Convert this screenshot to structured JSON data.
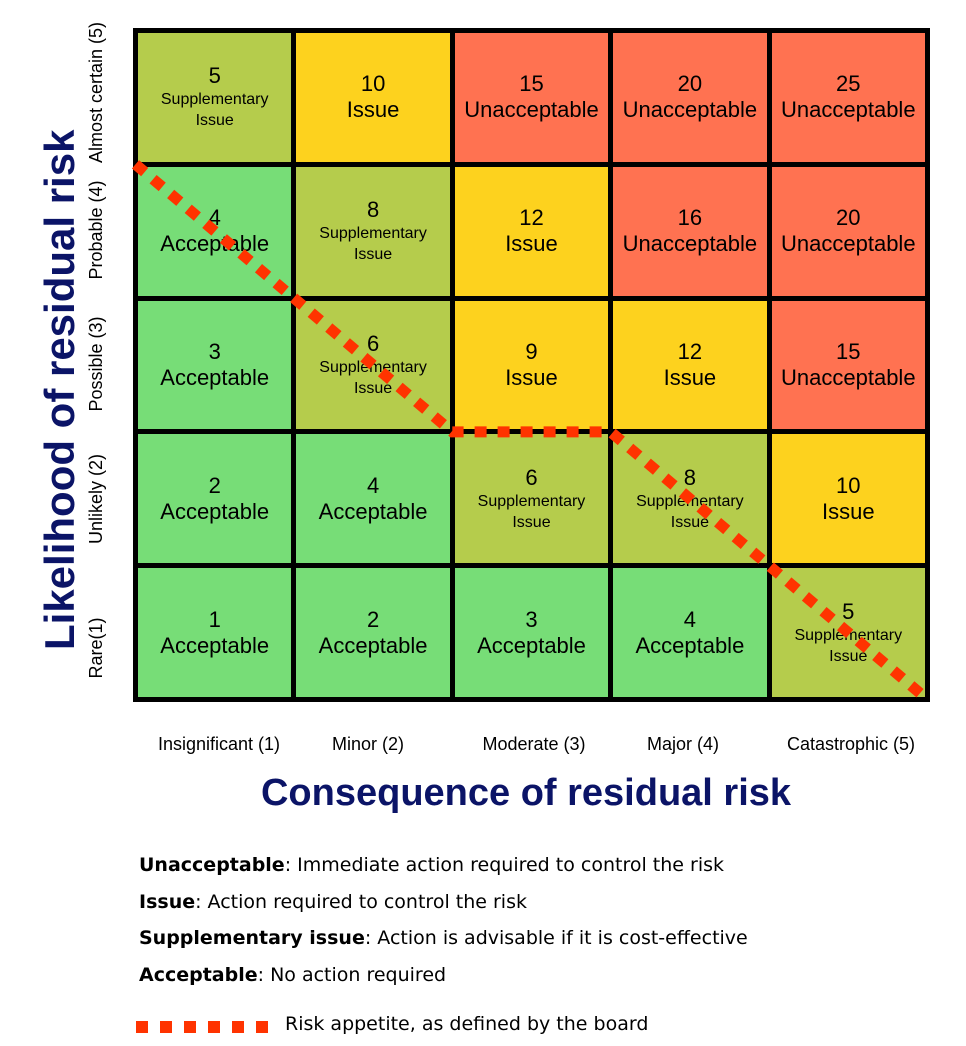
{
  "y_axis_title": "Likelihood of residual risk",
  "x_axis_title": "Consequence of residual risk",
  "rows": [
    "Almost certain (5)",
    "Probable (4)",
    "Possible (3)",
    "Unlikely (2)",
    "Rare(1)"
  ],
  "columns": [
    "Insignificant (1)",
    "Minor (2)",
    "Moderate (3)",
    "Major (4)",
    "Catastrophic (5)"
  ],
  "colors": {
    "Acceptable": "#77dd77",
    "Supplementary": "#b5cc4c",
    "Issue": "#fdd21e",
    "Unacceptable": "#ff7251",
    "appetite_line": "#ff3300",
    "title_color": "#0b1467"
  },
  "matrix": [
    [
      {
        "score": "5",
        "line1": "Supplementary",
        "line2": "Issue",
        "category": "Supplementary"
      },
      {
        "score": "10",
        "line1": "Issue",
        "line2": "",
        "category": "Issue"
      },
      {
        "score": "15",
        "line1": "Unacceptable",
        "line2": "",
        "category": "Unacceptable"
      },
      {
        "score": "20",
        "line1": "Unacceptable",
        "line2": "",
        "category": "Unacceptable"
      },
      {
        "score": "25",
        "line1": "Unacceptable",
        "line2": "",
        "category": "Unacceptable"
      }
    ],
    [
      {
        "score": "4",
        "line1": "Acceptable",
        "line2": "",
        "category": "Acceptable"
      },
      {
        "score": "8",
        "line1": "Supplementary",
        "line2": "Issue",
        "category": "Supplementary"
      },
      {
        "score": "12",
        "line1": "Issue",
        "line2": "",
        "category": "Issue"
      },
      {
        "score": "16",
        "line1": "Unacceptable",
        "line2": "",
        "category": "Unacceptable"
      },
      {
        "score": "20",
        "line1": "Unacceptable",
        "line2": "",
        "category": "Unacceptable"
      }
    ],
    [
      {
        "score": "3",
        "line1": "Acceptable",
        "line2": "",
        "category": "Acceptable"
      },
      {
        "score": "6",
        "line1": "Supplementary",
        "line2": "Issue",
        "category": "Supplementary"
      },
      {
        "score": "9",
        "line1": "Issue",
        "line2": "",
        "category": "Issue"
      },
      {
        "score": "12",
        "line1": "Issue",
        "line2": "",
        "category": "Issue"
      },
      {
        "score": "15",
        "line1": "Unacceptable",
        "line2": "",
        "category": "Unacceptable"
      }
    ],
    [
      {
        "score": "2",
        "line1": "Acceptable",
        "line2": "",
        "category": "Acceptable"
      },
      {
        "score": "4",
        "line1": "Acceptable",
        "line2": "",
        "category": "Acceptable"
      },
      {
        "score": "6",
        "line1": "Supplementary",
        "line2": "Issue",
        "category": "Supplementary"
      },
      {
        "score": "8",
        "line1": "Supplementary",
        "line2": "Issue",
        "category": "Supplementary"
      },
      {
        "score": "10",
        "line1": "Issue",
        "line2": "",
        "category": "Issue"
      }
    ],
    [
      {
        "score": "1",
        "line1": "Acceptable",
        "line2": "",
        "category": "Acceptable"
      },
      {
        "score": "2",
        "line1": "Acceptable",
        "line2": "",
        "category": "Acceptable"
      },
      {
        "score": "3",
        "line1": "Acceptable",
        "line2": "",
        "category": "Acceptable"
      },
      {
        "score": "4",
        "line1": "Acceptable",
        "line2": "",
        "category": "Acceptable"
      },
      {
        "score": "5",
        "line1": "Supplementary",
        "line2": "Issue",
        "category": "Supplementary"
      }
    ]
  ],
  "risk_appetite_steps": [
    0,
    1,
    1,
    2,
    2,
    3,
    3,
    3,
    4,
    4,
    5,
    5
  ],
  "legend": [
    {
      "term": "Unacceptable",
      "desc": ": Immediate action required to control the risk"
    },
    {
      "term": "Issue",
      "desc": ": Action required to control the risk"
    },
    {
      "term": "Supplementary issue",
      "desc": ": Action is advisable if it is cost-effective"
    },
    {
      "term": "Acceptable",
      "desc": ": No action required"
    }
  ],
  "appetite_legend": "Risk appetite, as defined by the board"
}
